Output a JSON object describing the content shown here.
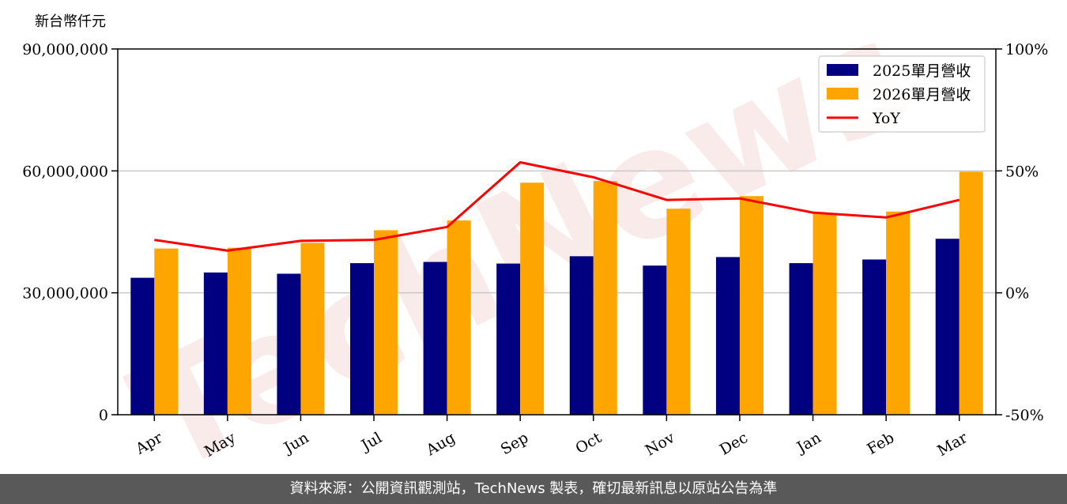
{
  "chart_data": {
    "type": "bar",
    "y_unit_label": "新台幣仟元",
    "categories": [
      "Apr",
      "May",
      "Jun",
      "Jul",
      "Aug",
      "Sep",
      "Oct",
      "Nov",
      "Dec",
      "Jan",
      "Feb",
      "Mar"
    ],
    "series": [
      {
        "name": "2025單月營收",
        "type": "bar",
        "color": "#000080",
        "values": [
          33700000,
          35000000,
          34700000,
          37300000,
          37600000,
          37200000,
          39000000,
          36700000,
          38800000,
          37300000,
          38200000,
          43300000
        ]
      },
      {
        "name": "2026單月營收",
        "type": "bar",
        "color": "#FFA500",
        "values": [
          40900000,
          41100000,
          42300000,
          45400000,
          47800000,
          57100000,
          57500000,
          50700000,
          53800000,
          49600000,
          50000000,
          59800000
        ]
      },
      {
        "name": "YoY",
        "type": "line",
        "axis": "right",
        "color": "#FF0000",
        "values": [
          21.7,
          17.3,
          21.3,
          21.7,
          27.0,
          53.5,
          47.4,
          38.1,
          38.7,
          32.9,
          30.9,
          38.1
        ]
      }
    ],
    "ylim": [
      0,
      90000000
    ],
    "yticks": [
      0,
      30000000,
      60000000,
      90000000
    ],
    "ytick_labels": [
      "0",
      "30,000,000",
      "60,000,000",
      "90,000,000"
    ],
    "y2lim": [
      -50,
      100
    ],
    "y2ticks": [
      -50,
      0,
      50,
      100
    ],
    "y2tick_labels": [
      "-50%",
      "0%",
      "50%",
      "100%"
    ],
    "grid": "horizontal",
    "legend_position": "top-right"
  },
  "watermark": "TechNews",
  "footer": {
    "source_text": "資料來源：公開資訊觀測站，TechNews 製表，確切最新訊息以原站公告為準"
  }
}
